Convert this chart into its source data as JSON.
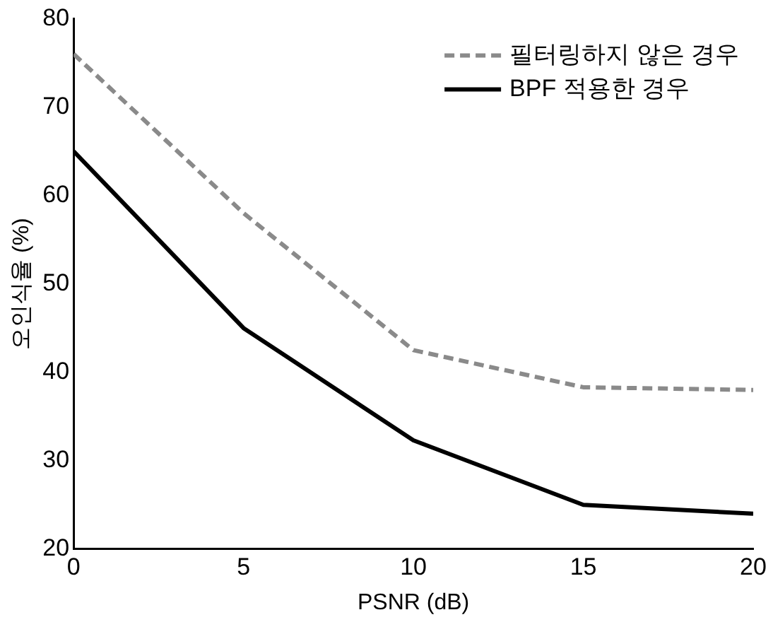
{
  "chart_data": {
    "type": "line",
    "xlabel": "PSNR (dB)",
    "ylabel": "오인식율 (%)",
    "x": [
      0,
      5,
      10,
      15,
      20
    ],
    "series": [
      {
        "name": "필터링하지 않은 경우",
        "color": "#8a8a8a",
        "line_style": "dashed",
        "values": [
          76,
          58,
          42.5,
          38.3,
          38
        ]
      },
      {
        "name": "BPF 적용한 경우",
        "color": "#000000",
        "line_style": "solid",
        "values": [
          65,
          45,
          32.3,
          25,
          24
        ]
      }
    ],
    "xlim": [
      0,
      20
    ],
    "xticks": [
      0,
      5,
      10,
      15,
      20
    ],
    "ylim": [
      20,
      80
    ],
    "yticks": [
      20,
      30,
      40,
      50,
      60,
      70,
      80
    ],
    "grid": false,
    "legend": "top right",
    "marker": "none"
  }
}
